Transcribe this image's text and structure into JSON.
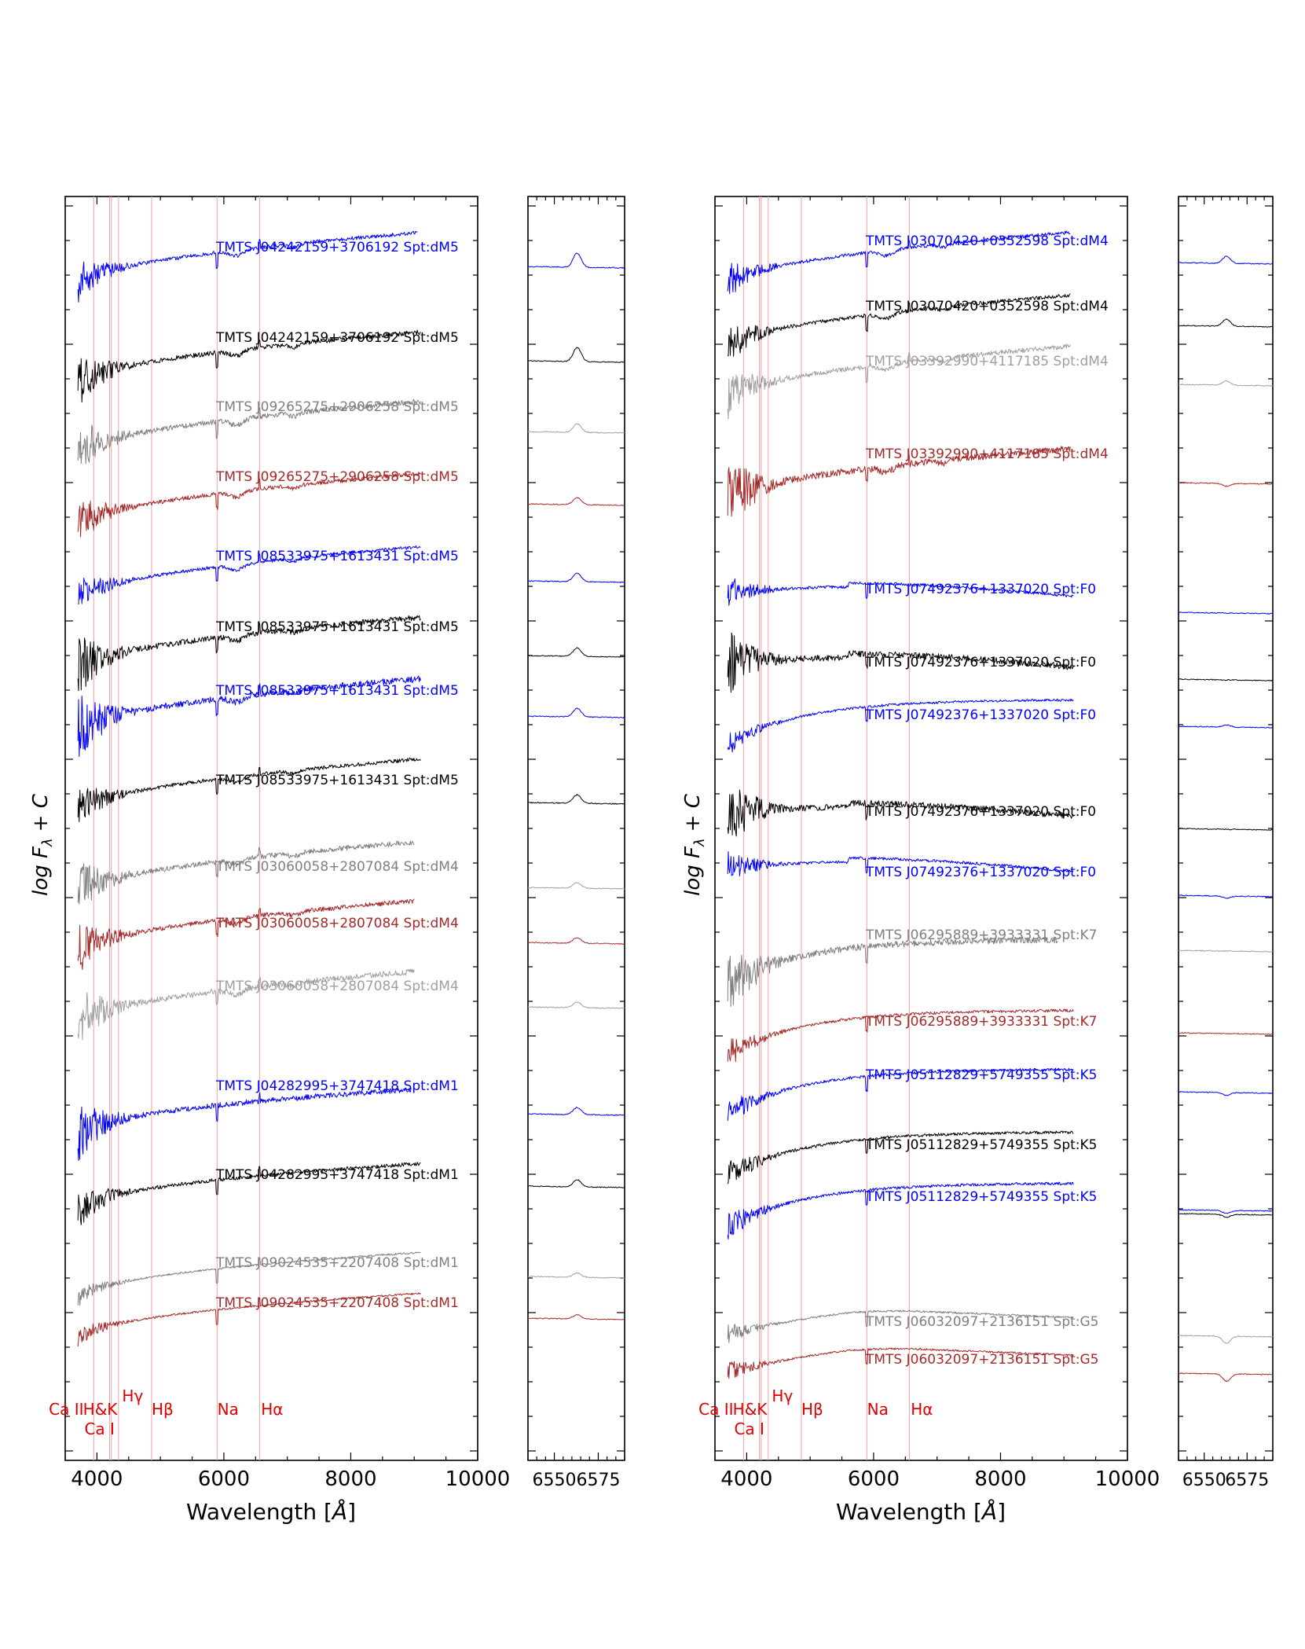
{
  "figure": {
    "ylabel_text": "log F",
    "ylabel_sub": "λ",
    "ylabel_tail": "+ C",
    "xlabel_text": "Wavelength [",
    "xlabel_unit": "Å",
    "xlabel_tail": "]"
  },
  "chart_data": [
    {
      "type": "line",
      "title": "",
      "xlabel": "Wavelength [Å]",
      "ylabel": "log Fλ + C",
      "xlim": [
        3500,
        10000
      ],
      "xticks": [
        4000,
        6000,
        8000,
        10000
      ],
      "grid": false,
      "lines": [
        {
          "label": "Ca II",
          "x": 3950
        },
        {
          "label": "H&K",
          "x": 4200
        },
        {
          "label": "Ca I",
          "x": 4227
        },
        {
          "label": "Hγ",
          "x": 4340
        },
        {
          "label": "Hβ",
          "x": 4861
        },
        {
          "label": "Na",
          "x": 5893
        },
        {
          "label": "Hα",
          "x": 6563
        }
      ],
      "series": [
        {
          "name": "TMTS J04242159+3706192 Spt:dM5",
          "color": "#0000ff",
          "spt": "M",
          "end_x": 9050,
          "noise": 0.8
        },
        {
          "name": "TMTS J04242159+3706192 Spt:dM5",
          "color": "#000000",
          "spt": "M",
          "end_x": 9100,
          "noise": 1.0
        },
        {
          "name": "TMTS J09265275+2906258 Spt:dM5",
          "color": "#808080",
          "spt": "M",
          "end_x": 9100,
          "noise": 1.1
        },
        {
          "name": "TMTS J09265275+2906258 Spt:dM5",
          "color": "#a52a2a",
          "spt": "M",
          "end_x": 9100,
          "noise": 0.9
        },
        {
          "name": "TMTS J08533975+1613431 Spt:dM5",
          "color": "#0000ff",
          "spt": "M",
          "end_x": 9100,
          "noise": 0.7
        },
        {
          "name": "TMTS J08533975+1613431 Spt:dM5",
          "color": "#000000",
          "spt": "M",
          "end_x": 9100,
          "noise": 1.2
        },
        {
          "name": "TMTS J08533975+1613431 Spt:dM5",
          "color": "#0000ff",
          "spt": "M",
          "end_x": 9100,
          "noise": 1.3
        },
        {
          "name": "TMTS J08533975+1613431 Spt:dM5",
          "color": "#000000",
          "spt": "M",
          "end_x": 9100,
          "noise": 0.8
        },
        {
          "name": "TMTS J03060058+2807084 Spt:dM4",
          "color": "#808080",
          "spt": "M",
          "end_x": 9000,
          "noise": 1.1
        },
        {
          "name": "TMTS J03060058+2807084 Spt:dM4",
          "color": "#a52a2a",
          "spt": "M",
          "end_x": 9000,
          "noise": 1.0
        },
        {
          "name": "TMTS J03060058+2807084 Spt:dM4",
          "color": "#a0a0a0",
          "spt": "M",
          "end_x": 9000,
          "noise": 1.2
        },
        {
          "name": "TMTS J04282995+3747418 Spt:dM1",
          "color": "#0000ff",
          "spt": "M1",
          "end_x": 8950,
          "noise": 1.1
        },
        {
          "name": "TMTS J04282995+3747418 Spt:dM1",
          "color": "#000000",
          "spt": "M1",
          "end_x": 9100,
          "noise": 0.8
        },
        {
          "name": "TMTS J09024535+2207408 Spt:dM1",
          "color": "#808080",
          "spt": "M1",
          "end_x": 9100,
          "noise": 0.4
        },
        {
          "name": "TMTS J09024535+2207408 Spt:dM1",
          "color": "#a52a2a",
          "spt": "M1",
          "end_x": 9100,
          "noise": 0.4
        }
      ]
    },
    {
      "type": "line",
      "title": "",
      "xlabel": "",
      "ylabel": "",
      "xlim": [
        6535,
        6590
      ],
      "xticks": [
        6550,
        6575
      ],
      "grid": false,
      "series": [
        {
          "name": "TMTS J04242159+3706192 Spt:dM5",
          "color": "#0000ff",
          "halpha": 1.0
        },
        {
          "name": "TMTS J04242159+3706192 Spt:dM5",
          "color": "#000000",
          "halpha": 1.0
        },
        {
          "name": "TMTS J09265275+2906258 Spt:dM5",
          "color": "#a0a0a0",
          "halpha": 0.6
        },
        {
          "name": "TMTS J09265275+2906258 Spt:dM5",
          "color": "#a52a2a",
          "halpha": 0.5
        },
        {
          "name": "TMTS J08533975+1613431 Spt:dM5",
          "color": "#0000ff",
          "halpha": 0.6
        },
        {
          "name": "TMTS J08533975+1613431 Spt:dM5",
          "color": "#000000",
          "halpha": 0.6
        },
        {
          "name": "TMTS J08533975+1613431 Spt:dM5",
          "color": "#0000ff",
          "halpha": 0.6
        },
        {
          "name": "TMTS J08533975+1613431 Spt:dM5",
          "color": "#000000",
          "halpha": 0.6
        },
        {
          "name": "TMTS J03060058+2807084 Spt:dM4",
          "color": "#a0a0a0",
          "halpha": 0.4
        },
        {
          "name": "TMTS J03060058+2807084 Spt:dM4",
          "color": "#a52a2a",
          "halpha": 0.4
        },
        {
          "name": "TMTS J03060058+2807084 Spt:dM4",
          "color": "#a0a0a0",
          "halpha": 0.4
        },
        {
          "name": "TMTS J04282995+3747418 Spt:dM1",
          "color": "#0000ff",
          "halpha": 0.5
        },
        {
          "name": "TMTS J04282995+3747418 Spt:dM1",
          "color": "#000000",
          "halpha": 0.5
        },
        {
          "name": "TMTS J09024535+2207408 Spt:dM1",
          "color": "#a0a0a0",
          "halpha": 0.3
        },
        {
          "name": "TMTS J09024535+2207408 Spt:dM1",
          "color": "#a52a2a",
          "halpha": 0.3
        }
      ]
    },
    {
      "type": "line",
      "title": "",
      "xlabel": "Wavelength [Å]",
      "ylabel": "log Fλ + C",
      "xlim": [
        3500,
        10000
      ],
      "xticks": [
        4000,
        6000,
        8000,
        10000
      ],
      "grid": false,
      "lines": [
        {
          "label": "Ca II",
          "x": 3950
        },
        {
          "label": "H&K",
          "x": 4200
        },
        {
          "label": "Ca I",
          "x": 4227
        },
        {
          "label": "Hγ",
          "x": 4340
        },
        {
          "label": "Hβ",
          "x": 4861
        },
        {
          "label": "Na",
          "x": 5893
        },
        {
          "label": "Hα",
          "x": 6563
        }
      ],
      "series": [
        {
          "name": "TMTS J03070420+0352598 Spt:dM4",
          "color": "#0000ff",
          "spt": "M",
          "end_x": 9100,
          "noise": 0.7
        },
        {
          "name": "TMTS J03070420+0352598 Spt:dM4",
          "color": "#000000",
          "spt": "M",
          "end_x": 9100,
          "noise": 0.8
        },
        {
          "name": "TMTS J03392990+4117185 Spt:dM4",
          "color": "#a0a0a0",
          "spt": "M",
          "end_x": 9100,
          "noise": 1.0
        },
        {
          "name": "TMTS J03392990+4117185 Spt:dM4",
          "color": "#a52a2a",
          "spt": "M",
          "end_x": 9100,
          "noise": 1.4
        },
        {
          "name": "TMTS J07492376+1337020 Spt:F0",
          "color": "#0000ff",
          "spt": "F",
          "end_x": 9150,
          "noise": 0.6
        },
        {
          "name": "TMTS J07492376+1337020 Spt:F0",
          "color": "#000000",
          "spt": "F",
          "end_x": 9150,
          "noise": 1.3
        },
        {
          "name": "TMTS J07492376+1337020 Spt:F0",
          "color": "#0000ff",
          "spt": "K",
          "end_x": 9150,
          "noise": 0.5
        },
        {
          "name": "TMTS J07492376+1337020 Spt:F0",
          "color": "#000000",
          "spt": "F",
          "end_x": 9150,
          "noise": 1.3
        },
        {
          "name": "TMTS J07492376+1337020 Spt:F0",
          "color": "#0000ff",
          "spt": "F",
          "end_x": 9150,
          "noise": 0.6
        },
        {
          "name": "TMTS J06295889+3933331 Spt:K7",
          "color": "#808080",
          "spt": "K",
          "end_x": 8900,
          "noise": 1.4
        },
        {
          "name": "TMTS J06295889+3933331 Spt:K7",
          "color": "#a52a2a",
          "spt": "K",
          "end_x": 9150,
          "noise": 0.6
        },
        {
          "name": "TMTS J05112829+5749355 Spt:K5",
          "color": "#0000ff",
          "spt": "K",
          "end_x": 9150,
          "noise": 0.6
        },
        {
          "name": "TMTS J05112829+5749355 Spt:K5",
          "color": "#000000",
          "spt": "K",
          "end_x": 9150,
          "noise": 0.6
        },
        {
          "name": "TMTS J05112829+5749355 Spt:K5",
          "color": "#0000ff",
          "spt": "K",
          "end_x": 9150,
          "noise": 0.6
        },
        {
          "name": "TMTS J06032097+2136151 Spt:G5",
          "color": "#808080",
          "spt": "G",
          "end_x": 9150,
          "noise": 0.4
        },
        {
          "name": "TMTS J06032097+2136151 Spt:G5",
          "color": "#a52a2a",
          "spt": "G",
          "end_x": 9150,
          "noise": 0.4
        }
      ]
    },
    {
      "type": "line",
      "title": "",
      "xlabel": "",
      "ylabel": "",
      "xlim": [
        6535,
        6590
      ],
      "xticks": [
        6550,
        6575
      ],
      "grid": false,
      "series": [
        {
          "name": "TMTS J03070420+0352598 Spt:dM4",
          "color": "#0000ff",
          "halpha": 0.5
        },
        {
          "name": "TMTS J03070420+0352598 Spt:dM4",
          "color": "#000000",
          "halpha": 0.5
        },
        {
          "name": "TMTS J03392990+4117185 Spt:dM4",
          "color": "#a0a0a0",
          "halpha": 0.3
        },
        {
          "name": "TMTS J03392990+4117185 Spt:dM4",
          "color": "#a52a2a",
          "halpha": -0.2
        },
        {
          "name": "TMTS J07492376+1337020 Spt:F0",
          "color": "#0000ff",
          "halpha": 0.0
        },
        {
          "name": "TMTS J07492376+1337020 Spt:F0",
          "color": "#000000",
          "halpha": 0.0
        },
        {
          "name": "TMTS J07492376+1337020 Spt:F0",
          "color": "#0000ff",
          "halpha": 0.15
        },
        {
          "name": "TMTS J07492376+1337020 Spt:F0",
          "color": "#000000",
          "halpha": 0.0
        },
        {
          "name": "TMTS J07492376+1337020 Spt:F0",
          "color": "#0000ff",
          "halpha": -0.15
        },
        {
          "name": "TMTS J06295889+3933331 Spt:K7",
          "color": "#a0a0a0",
          "halpha": 0.0
        },
        {
          "name": "TMTS J06295889+3933331 Spt:K7",
          "color": "#a52a2a",
          "halpha": 0.0
        },
        {
          "name": "TMTS J05112829+5749355 Spt:K5",
          "color": "#0000ff",
          "halpha": -0.2
        },
        {
          "name": "TMTS J05112829+5749355 Spt:K5",
          "color": "#000000",
          "halpha": -0.2
        },
        {
          "name": "TMTS J05112829+5749355 Spt:K5",
          "color": "#0000ff",
          "halpha": -0.2
        },
        {
          "name": "TMTS J06032097+2136151 Spt:G5",
          "color": "#a0a0a0",
          "halpha": -0.5
        },
        {
          "name": "TMTS J06032097+2136151 Spt:G5",
          "color": "#a52a2a",
          "halpha": -0.5
        }
      ]
    }
  ]
}
